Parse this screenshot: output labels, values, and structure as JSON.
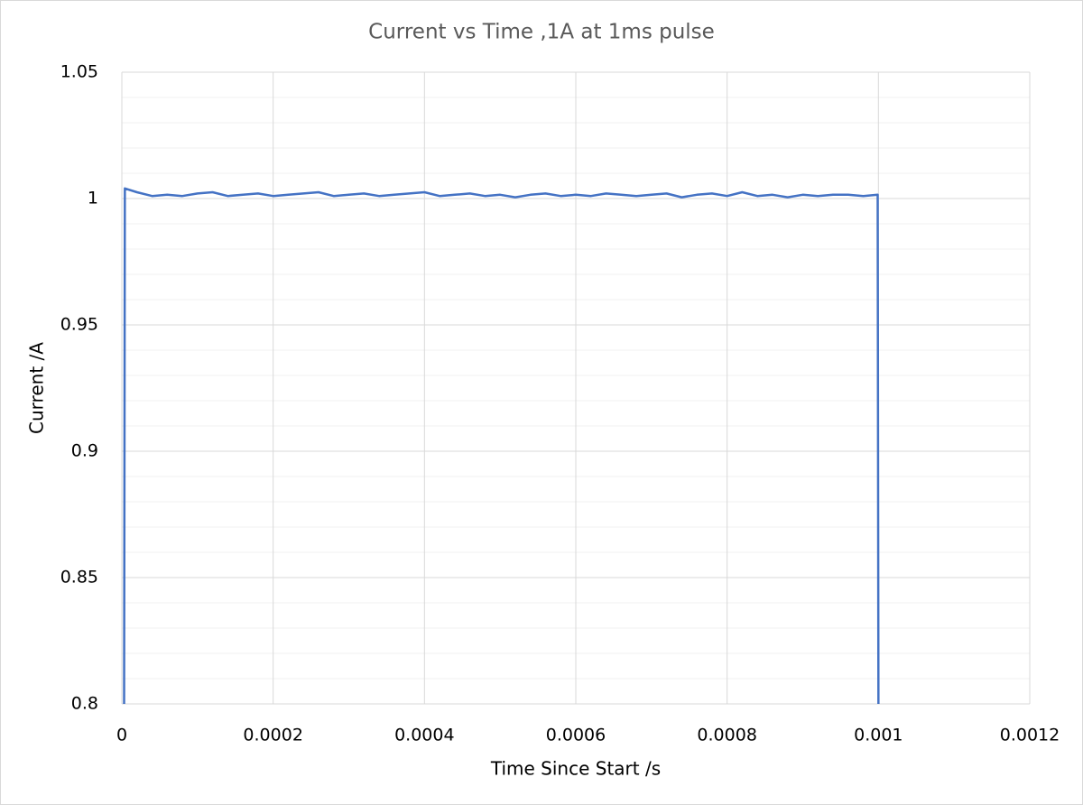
{
  "chart_data": {
    "type": "line",
    "title": "Current vs Time ,1A at 1ms pulse",
    "x_label": "Time Since Start /s",
    "y_label": "Current /A",
    "x": [
      3e-06,
      4e-06,
      2e-05,
      4e-05,
      6e-05,
      8e-05,
      0.0001,
      0.00012,
      0.00014,
      0.00016,
      0.00018,
      0.0002,
      0.00022,
      0.00024,
      0.00026,
      0.00028,
      0.0003,
      0.00032,
      0.00034,
      0.00036,
      0.00038,
      0.0004,
      0.00042,
      0.00044,
      0.00046,
      0.00048,
      0.0005,
      0.00052,
      0.00054,
      0.00056,
      0.00058,
      0.0006,
      0.00062,
      0.00064,
      0.00066,
      0.00068,
      0.0007,
      0.00072,
      0.00074,
      0.00076,
      0.00078,
      0.0008,
      0.00082,
      0.00084,
      0.00086,
      0.00088,
      0.0009,
      0.00092,
      0.00094,
      0.00096,
      0.00098,
      0.000999,
      0.001
    ],
    "series": [
      {
        "color": "#4472c4",
        "values": [
          0.8,
          1.004,
          1.0025,
          1.001,
          1.0015,
          1.001,
          1.002,
          1.0025,
          1.001,
          1.0015,
          1.002,
          1.001,
          1.0015,
          1.002,
          1.0025,
          1.001,
          1.0015,
          1.002,
          1.001,
          1.0015,
          1.002,
          1.0025,
          1.001,
          1.0015,
          1.002,
          1.001,
          1.0015,
          1.0005,
          1.0015,
          1.002,
          1.001,
          1.0015,
          1.001,
          1.002,
          1.0015,
          1.001,
          1.0015,
          1.002,
          1.0005,
          1.0015,
          1.002,
          1.001,
          1.0025,
          1.001,
          1.0015,
          1.0005,
          1.0015,
          1.001,
          1.0015,
          1.0015,
          1.001,
          1.0015,
          0.8
        ]
      }
    ],
    "xlim": [
      0,
      0.0012
    ],
    "xticks": [
      0,
      0.0002,
      0.0004,
      0.0006,
      0.0008,
      0.001,
      0.0012
    ],
    "ylim": [
      0.8,
      1.05
    ],
    "yticks": [
      0.8,
      0.85,
      0.9,
      0.95,
      1,
      1.05
    ],
    "y_minor_ticks": [
      0.81,
      0.82,
      0.83,
      0.84,
      0.86,
      0.87,
      0.88,
      0.89,
      0.91,
      0.92,
      0.93,
      0.94,
      0.96,
      0.97,
      0.98,
      0.99,
      1.01,
      1.02,
      1.03,
      1.04
    ],
    "grid": true
  }
}
